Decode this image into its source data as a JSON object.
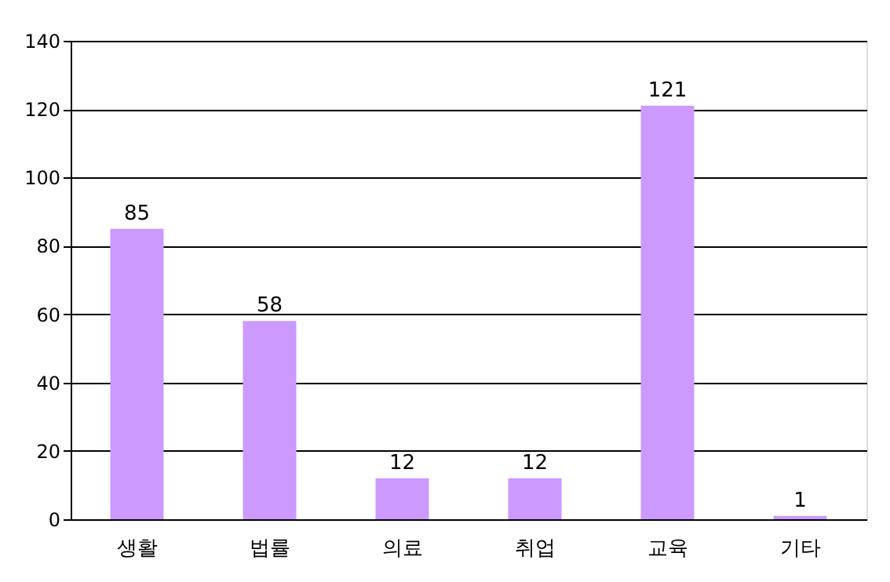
{
  "chart_data": {
    "type": "bar",
    "categories": [
      "생활",
      "법률",
      "의료",
      "취업",
      "교육",
      "기타"
    ],
    "values": [
      85,
      58,
      12,
      12,
      121,
      1
    ],
    "color": "#cc99ff",
    "ylim": [
      0,
      140
    ],
    "yticks": [
      0,
      20,
      40,
      60,
      80,
      100,
      120,
      140
    ],
    "grid": "y",
    "data_labels": true
  }
}
